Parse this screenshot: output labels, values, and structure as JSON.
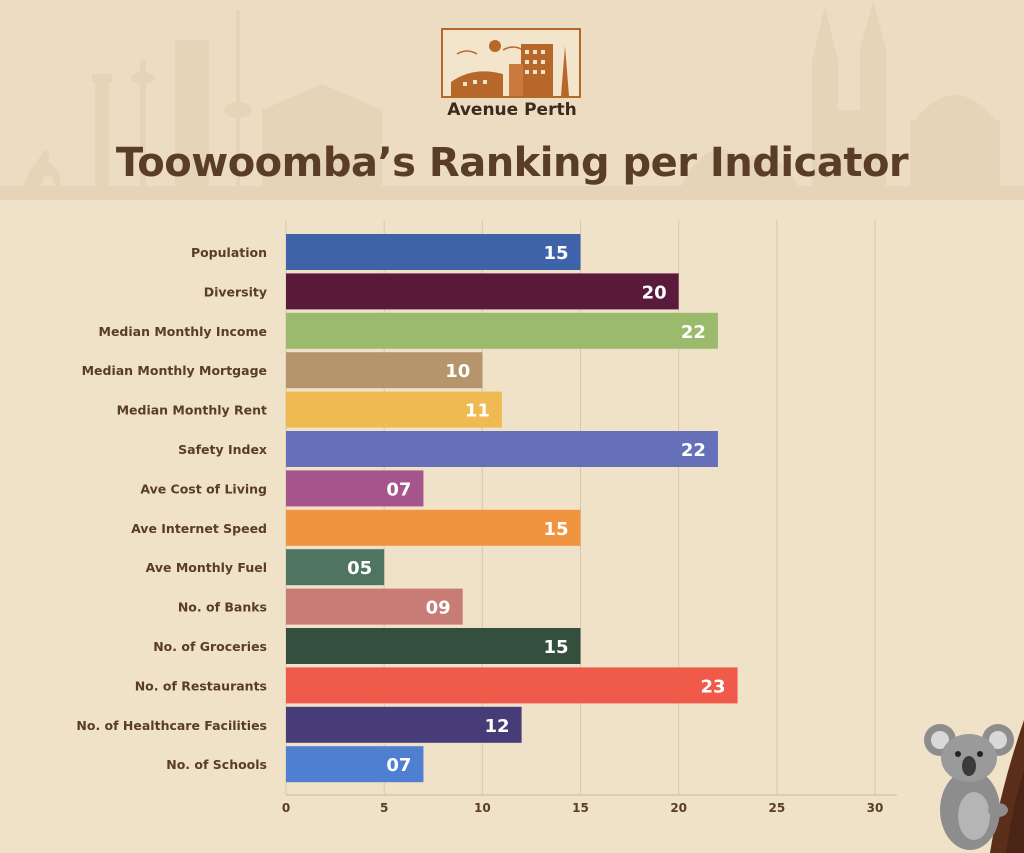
{
  "brand": {
    "name": "Avenue Perth",
    "colors": {
      "accent": "#b8672a",
      "title": "#5a3d26",
      "background": "#f0e1c9"
    }
  },
  "chart_data": {
    "type": "bar",
    "orientation": "horizontal",
    "title": "Toowoomba’s Ranking per Indicator",
    "categories": [
      "Population",
      "Diversity",
      "Median Monthly Income",
      "Median Monthly Mortgage",
      "Median Monthly Rent",
      "Safety Index",
      "Ave Cost of Living",
      "Ave Internet Speed",
      "Ave Monthly Fuel",
      "No. of Banks",
      "No. of Groceries",
      "No. of Restaurants",
      "No. of Healthcare Facilities",
      "No. of Schools"
    ],
    "values": [
      15,
      20,
      22,
      10,
      11,
      22,
      7,
      15,
      5,
      9,
      15,
      23,
      12,
      7
    ],
    "value_labels": [
      "15",
      "20",
      "22",
      "10",
      "11",
      "22",
      "07",
      "15",
      "05",
      "09",
      "15",
      "23",
      "12",
      "07"
    ],
    "colors": [
      "#3f63a8",
      "#5a1a3c",
      "#9cba6c",
      "#b6946c",
      "#f0ba52",
      "#6570b8",
      "#a6558c",
      "#f19440",
      "#4f7560",
      "#c87c76",
      "#344f3e",
      "#ef5a4a",
      "#473c78",
      "#4f7fd0"
    ],
    "xlim": [
      0,
      30
    ],
    "xticks": [
      0,
      5,
      10,
      15,
      20,
      25,
      30
    ],
    "xlabel": "",
    "ylabel": "",
    "grid": true,
    "legend": "none"
  }
}
